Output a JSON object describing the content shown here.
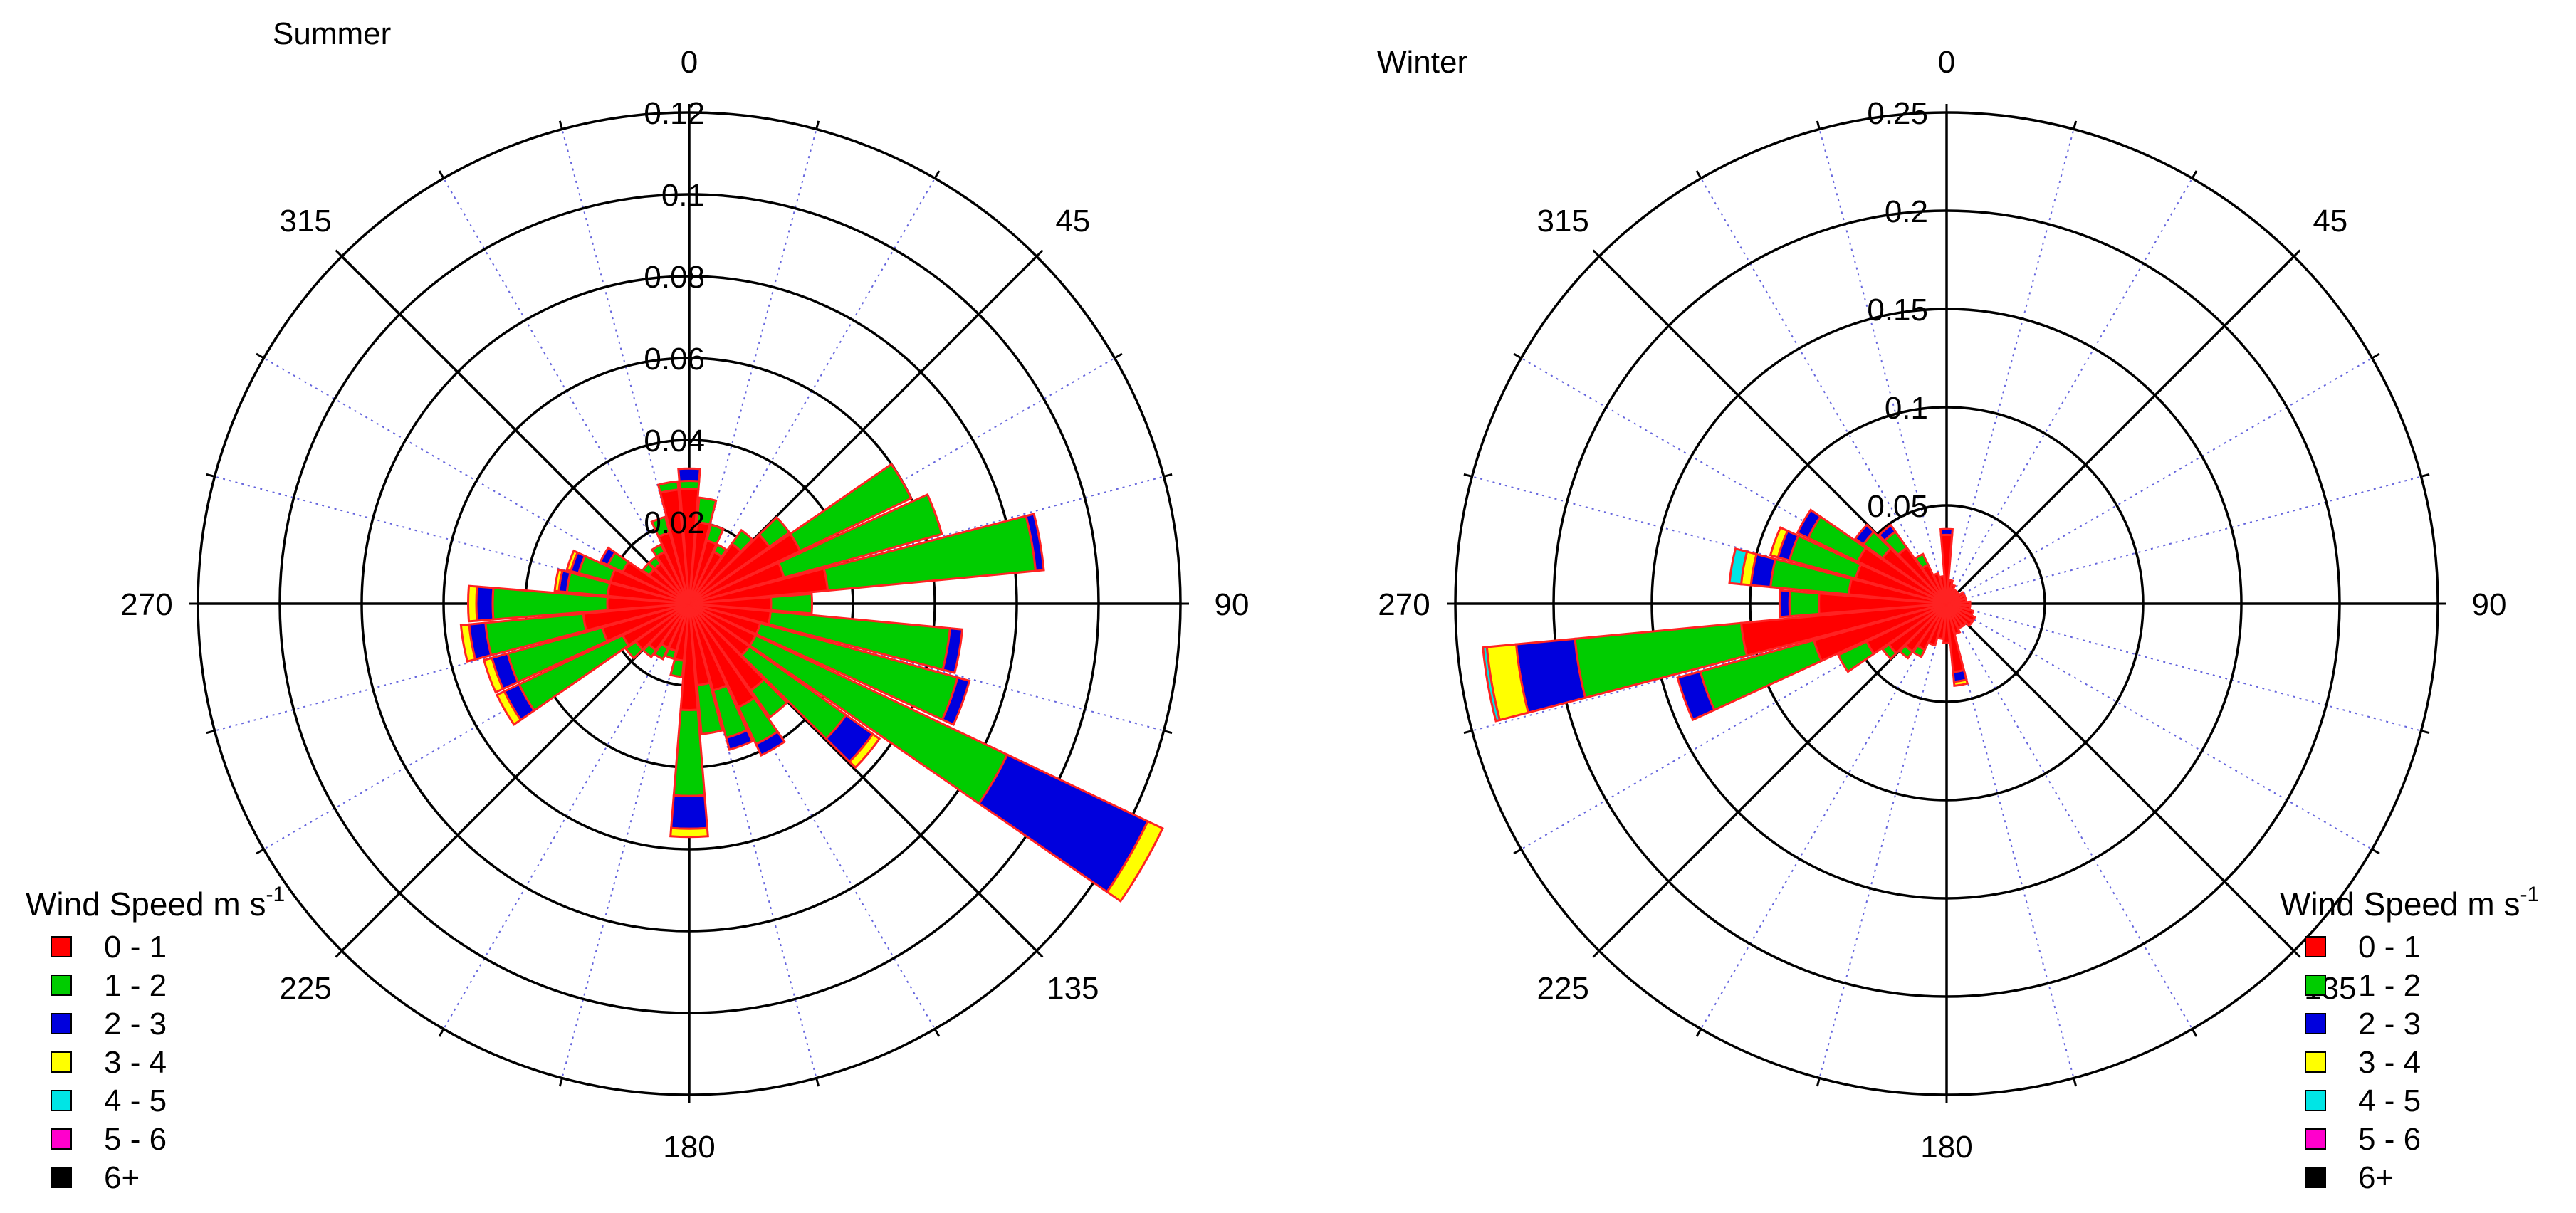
{
  "chart_data": [
    {
      "type": "windrose",
      "title": "Summer",
      "rlim": [
        0,
        0.12
      ],
      "radial_ticks": [
        0.02,
        0.04,
        0.06,
        0.08,
        0.1,
        0.12
      ],
      "direction_labels": [
        "0",
        "45",
        "90",
        "135",
        "180",
        "225",
        "270",
        "315"
      ],
      "direction_label_angles": [
        0,
        45,
        90,
        135,
        180,
        225,
        270,
        315
      ],
      "legend_title": "Wind Speed m s",
      "legend_title_sup": "-1",
      "legend_position": "bottom-left",
      "speed_bins": [
        {
          "label": "0 - 1",
          "color": "#ff0000"
        },
        {
          "label": "1 - 2",
          "color": "#00cc00"
        },
        {
          "label": "2 - 3",
          "color": "#0000dd"
        },
        {
          "label": "3 - 4",
          "color": "#ffff00"
        },
        {
          "label": "4 - 5",
          "color": "#00e5e5"
        },
        {
          "label": "5 - 6",
          "color": "#ff00cc"
        },
        {
          "label": "6+",
          "color": "#000000"
        }
      ],
      "bars": [
        {
          "direction": 0,
          "values": [
            0.028,
            0.002,
            0.003,
            0.0,
            0.0,
            0.0,
            0.0
          ]
        },
        {
          "direction": 10,
          "values": [
            0.02,
            0.006,
            0.0,
            0.0,
            0.0,
            0.0,
            0.0
          ]
        },
        {
          "direction": 20,
          "values": [
            0.016,
            0.004,
            0.0,
            0.0,
            0.0,
            0.0,
            0.0
          ]
        },
        {
          "direction": 30,
          "values": [
            0.014,
            0.002,
            0.0,
            0.0,
            0.0,
            0.0,
            0.0
          ]
        },
        {
          "direction": 40,
          "values": [
            0.018,
            0.004,
            0.0,
            0.0,
            0.0,
            0.0,
            0.0
          ]
        },
        {
          "direction": 50,
          "values": [
            0.024,
            0.006,
            0.0,
            0.0,
            0.0,
            0.0,
            0.0
          ]
        },
        {
          "direction": 60,
          "values": [
            0.03,
            0.03,
            0.0,
            0.0,
            0.0,
            0.0,
            0.0
          ]
        },
        {
          "direction": 70,
          "values": [
            0.024,
            0.04,
            0.0,
            0.0,
            0.0,
            0.0,
            0.0
          ]
        },
        {
          "direction": 80,
          "values": [
            0.034,
            0.051,
            0.002,
            0.0,
            0.0,
            0.0,
            0.0
          ]
        },
        {
          "direction": 90,
          "values": [
            0.02,
            0.01,
            0.0,
            0.0,
            0.0,
            0.0,
            0.0
          ]
        },
        {
          "direction": 100,
          "values": [
            0.02,
            0.044,
            0.003,
            0.0,
            0.0,
            0.0,
            0.0
          ]
        },
        {
          "direction": 110,
          "values": [
            0.018,
            0.05,
            0.003,
            0.0,
            0.0,
            0.0,
            0.0
          ]
        },
        {
          "direction": 120,
          "values": [
            0.018,
            0.068,
            0.038,
            0.004,
            0.0,
            0.0,
            0.0
          ]
        },
        {
          "direction": 130,
          "values": [
            0.018,
            0.029,
            0.008,
            0.002,
            0.0,
            0.0,
            0.0
          ]
        },
        {
          "direction": 140,
          "values": [
            0.026,
            0.008,
            0.0,
            0.0,
            0.0,
            0.0,
            0.0
          ]
        },
        {
          "direction": 150,
          "values": [
            0.028,
            0.01,
            0.003,
            0.0,
            0.0,
            0.0,
            0.0
          ]
        },
        {
          "direction": 160,
          "values": [
            0.022,
            0.012,
            0.003,
            0.0,
            0.0,
            0.0,
            0.0
          ]
        },
        {
          "direction": 170,
          "values": [
            0.02,
            0.012,
            0.0,
            0.0,
            0.0,
            0.0,
            0.0
          ]
        },
        {
          "direction": 180,
          "values": [
            0.026,
            0.021,
            0.008,
            0.002,
            0.0,
            0.0,
            0.0
          ]
        },
        {
          "direction": 190,
          "values": [
            0.014,
            0.004,
            0.0,
            0.0,
            0.0,
            0.0,
            0.0
          ]
        },
        {
          "direction": 200,
          "values": [
            0.012,
            0.002,
            0.0,
            0.0,
            0.0,
            0.0,
            0.0
          ]
        },
        {
          "direction": 210,
          "values": [
            0.012,
            0.003,
            0.0,
            0.0,
            0.0,
            0.0,
            0.0
          ]
        },
        {
          "direction": 220,
          "values": [
            0.014,
            0.002,
            0.0,
            0.0,
            0.0,
            0.0,
            0.0
          ]
        },
        {
          "direction": 230,
          "values": [
            0.016,
            0.003,
            0.0,
            0.0,
            0.0,
            0.0,
            0.0
          ]
        },
        {
          "direction": 240,
          "values": [
            0.018,
            0.028,
            0.004,
            0.002,
            0.0,
            0.0,
            0.0
          ]
        },
        {
          "direction": 250,
          "values": [
            0.022,
            0.024,
            0.004,
            0.002,
            0.0,
            0.0,
            0.0
          ]
        },
        {
          "direction": 260,
          "values": [
            0.026,
            0.024,
            0.004,
            0.002,
            0.0,
            0.0,
            0.0
          ]
        },
        {
          "direction": 270,
          "values": [
            0.02,
            0.028,
            0.004,
            0.002,
            0.0,
            0.0,
            0.0
          ]
        },
        {
          "direction": 280,
          "values": [
            0.02,
            0.01,
            0.002,
            0.001,
            0.0,
            0.0,
            0.0
          ]
        },
        {
          "direction": 290,
          "values": [
            0.02,
            0.008,
            0.002,
            0.001,
            0.0,
            0.0,
            0.0
          ]
        },
        {
          "direction": 300,
          "values": [
            0.018,
            0.004,
            0.002,
            0.0,
            0.0,
            0.0,
            0.0
          ]
        },
        {
          "direction": 310,
          "values": [
            0.012,
            0.002,
            0.0,
            0.0,
            0.0,
            0.0,
            0.0
          ]
        },
        {
          "direction": 320,
          "values": [
            0.012,
            0.002,
            0.0,
            0.0,
            0.0,
            0.0,
            0.0
          ]
        },
        {
          "direction": 330,
          "values": [
            0.014,
            0.002,
            0.0,
            0.0,
            0.0,
            0.0,
            0.0
          ]
        },
        {
          "direction": 340,
          "values": [
            0.018,
            0.004,
            0.0,
            0.0,
            0.0,
            0.0,
            0.0
          ]
        },
        {
          "direction": 350,
          "values": [
            0.028,
            0.002,
            0.0,
            0.0,
            0.0,
            0.0,
            0.0
          ]
        }
      ]
    },
    {
      "type": "windrose",
      "title": "Winter",
      "rlim": [
        0,
        0.25
      ],
      "radial_ticks": [
        0.05,
        0.1,
        0.15,
        0.2,
        0.25
      ],
      "direction_labels": [
        "0",
        "45",
        "90",
        "135",
        "180",
        "225",
        "270",
        "315"
      ],
      "direction_label_angles": [
        0,
        45,
        90,
        135,
        180,
        225,
        270,
        315
      ],
      "legend_title": "Wind Speed m s",
      "legend_title_sup": "-1",
      "legend_position": "bottom-right",
      "speed_bins": [
        {
          "label": "0 - 1",
          "color": "#ff0000"
        },
        {
          "label": "1 - 2",
          "color": "#00cc00"
        },
        {
          "label": "2 - 3",
          "color": "#0000dd"
        },
        {
          "label": "3 - 4",
          "color": "#ffff00"
        },
        {
          "label": "4 - 5",
          "color": "#00e5e5"
        },
        {
          "label": "5 - 6",
          "color": "#ff00cc"
        },
        {
          "label": "6+",
          "color": "#000000"
        }
      ],
      "bars": [
        {
          "direction": 0,
          "values": [
            0.035,
            0.0,
            0.003,
            0.0,
            0.0,
            0.0,
            0.0
          ]
        },
        {
          "direction": 10,
          "values": [
            0.012,
            0.0,
            0.0,
            0.0,
            0.0,
            0.0,
            0.0
          ]
        },
        {
          "direction": 20,
          "values": [
            0.01,
            0.0,
            0.0,
            0.0,
            0.0,
            0.0,
            0.0
          ]
        },
        {
          "direction": 30,
          "values": [
            0.008,
            0.0,
            0.0,
            0.0,
            0.0,
            0.0,
            0.0
          ]
        },
        {
          "direction": 40,
          "values": [
            0.008,
            0.0,
            0.0,
            0.0,
            0.0,
            0.0,
            0.0
          ]
        },
        {
          "direction": 50,
          "values": [
            0.008,
            0.0,
            0.0,
            0.0,
            0.0,
            0.0,
            0.0
          ]
        },
        {
          "direction": 60,
          "values": [
            0.01,
            0.0,
            0.0,
            0.0,
            0.0,
            0.0,
            0.0
          ]
        },
        {
          "direction": 70,
          "values": [
            0.01,
            0.0,
            0.0,
            0.0,
            0.0,
            0.0,
            0.0
          ]
        },
        {
          "direction": 80,
          "values": [
            0.01,
            0.0,
            0.0,
            0.0,
            0.0,
            0.0,
            0.0
          ]
        },
        {
          "direction": 90,
          "values": [
            0.012,
            0.0,
            0.0,
            0.0,
            0.0,
            0.0,
            0.0
          ]
        },
        {
          "direction": 100,
          "values": [
            0.012,
            0.0,
            0.0,
            0.0,
            0.0,
            0.0,
            0.0
          ]
        },
        {
          "direction": 110,
          "values": [
            0.014,
            0.0,
            0.0,
            0.0,
            0.0,
            0.0,
            0.0
          ]
        },
        {
          "direction": 120,
          "values": [
            0.016,
            0.0,
            0.0,
            0.0,
            0.0,
            0.0,
            0.0
          ]
        },
        {
          "direction": 130,
          "values": [
            0.016,
            0.0,
            0.0,
            0.0,
            0.0,
            0.0,
            0.0
          ]
        },
        {
          "direction": 140,
          "values": [
            0.014,
            0.0,
            0.0,
            0.0,
            0.0,
            0.0,
            0.0
          ]
        },
        {
          "direction": 150,
          "values": [
            0.014,
            0.0,
            0.0,
            0.0,
            0.0,
            0.0,
            0.0
          ]
        },
        {
          "direction": 160,
          "values": [
            0.016,
            0.0,
            0.0,
            0.0,
            0.0,
            0.0,
            0.0
          ]
        },
        {
          "direction": 170,
          "values": [
            0.035,
            0.0,
            0.005,
            0.002,
            0.0,
            0.0,
            0.0
          ]
        },
        {
          "direction": 180,
          "values": [
            0.02,
            0.0,
            0.0,
            0.0,
            0.0,
            0.0,
            0.0
          ]
        },
        {
          "direction": 190,
          "values": [
            0.018,
            0.0,
            0.0,
            0.0,
            0.0,
            0.0,
            0.0
          ]
        },
        {
          "direction": 200,
          "values": [
            0.022,
            0.0,
            0.0,
            0.0,
            0.0,
            0.0,
            0.0
          ]
        },
        {
          "direction": 210,
          "values": [
            0.026,
            0.004,
            0.0,
            0.0,
            0.0,
            0.0,
            0.0
          ]
        },
        {
          "direction": 220,
          "values": [
            0.03,
            0.004,
            0.0,
            0.0,
            0.0,
            0.0,
            0.0
          ]
        },
        {
          "direction": 230,
          "values": [
            0.036,
            0.004,
            0.0,
            0.0,
            0.0,
            0.0,
            0.0
          ]
        },
        {
          "direction": 240,
          "values": [
            0.045,
            0.016,
            0.0,
            0.0,
            0.0,
            0.0,
            0.0
          ]
        },
        {
          "direction": 250,
          "values": [
            0.07,
            0.06,
            0.012,
            0.0,
            0.0,
            0.0,
            0.0
          ]
        },
        {
          "direction": 260,
          "values": [
            0.105,
            0.085,
            0.03,
            0.015,
            0.002,
            0.0,
            0.0
          ]
        },
        {
          "direction": 270,
          "values": [
            0.065,
            0.015,
            0.005,
            0.0,
            0.0,
            0.0,
            0.0
          ]
        },
        {
          "direction": 280,
          "values": [
            0.05,
            0.04,
            0.01,
            0.005,
            0.006,
            0.0,
            0.0
          ]
        },
        {
          "direction": 290,
          "values": [
            0.048,
            0.035,
            0.006,
            0.004,
            0.0,
            0.0,
            0.0
          ]
        },
        {
          "direction": 300,
          "values": [
            0.05,
            0.028,
            0.006,
            0.0,
            0.0,
            0.0,
            0.0
          ]
        },
        {
          "direction": 310,
          "values": [
            0.04,
            0.012,
            0.005,
            0.0,
            0.0,
            0.0,
            0.0
          ]
        },
        {
          "direction": 320,
          "values": [
            0.035,
            0.01,
            0.004,
            0.0,
            0.0,
            0.0,
            0.0
          ]
        },
        {
          "direction": 330,
          "values": [
            0.022,
            0.006,
            0.0,
            0.0,
            0.0,
            0.0,
            0.0
          ]
        },
        {
          "direction": 340,
          "values": [
            0.016,
            0.0,
            0.0,
            0.0,
            0.0,
            0.0,
            0.0
          ]
        },
        {
          "direction": 350,
          "values": [
            0.014,
            0.0,
            0.0,
            0.0,
            0.0,
            0.0,
            0.0
          ]
        }
      ]
    }
  ]
}
